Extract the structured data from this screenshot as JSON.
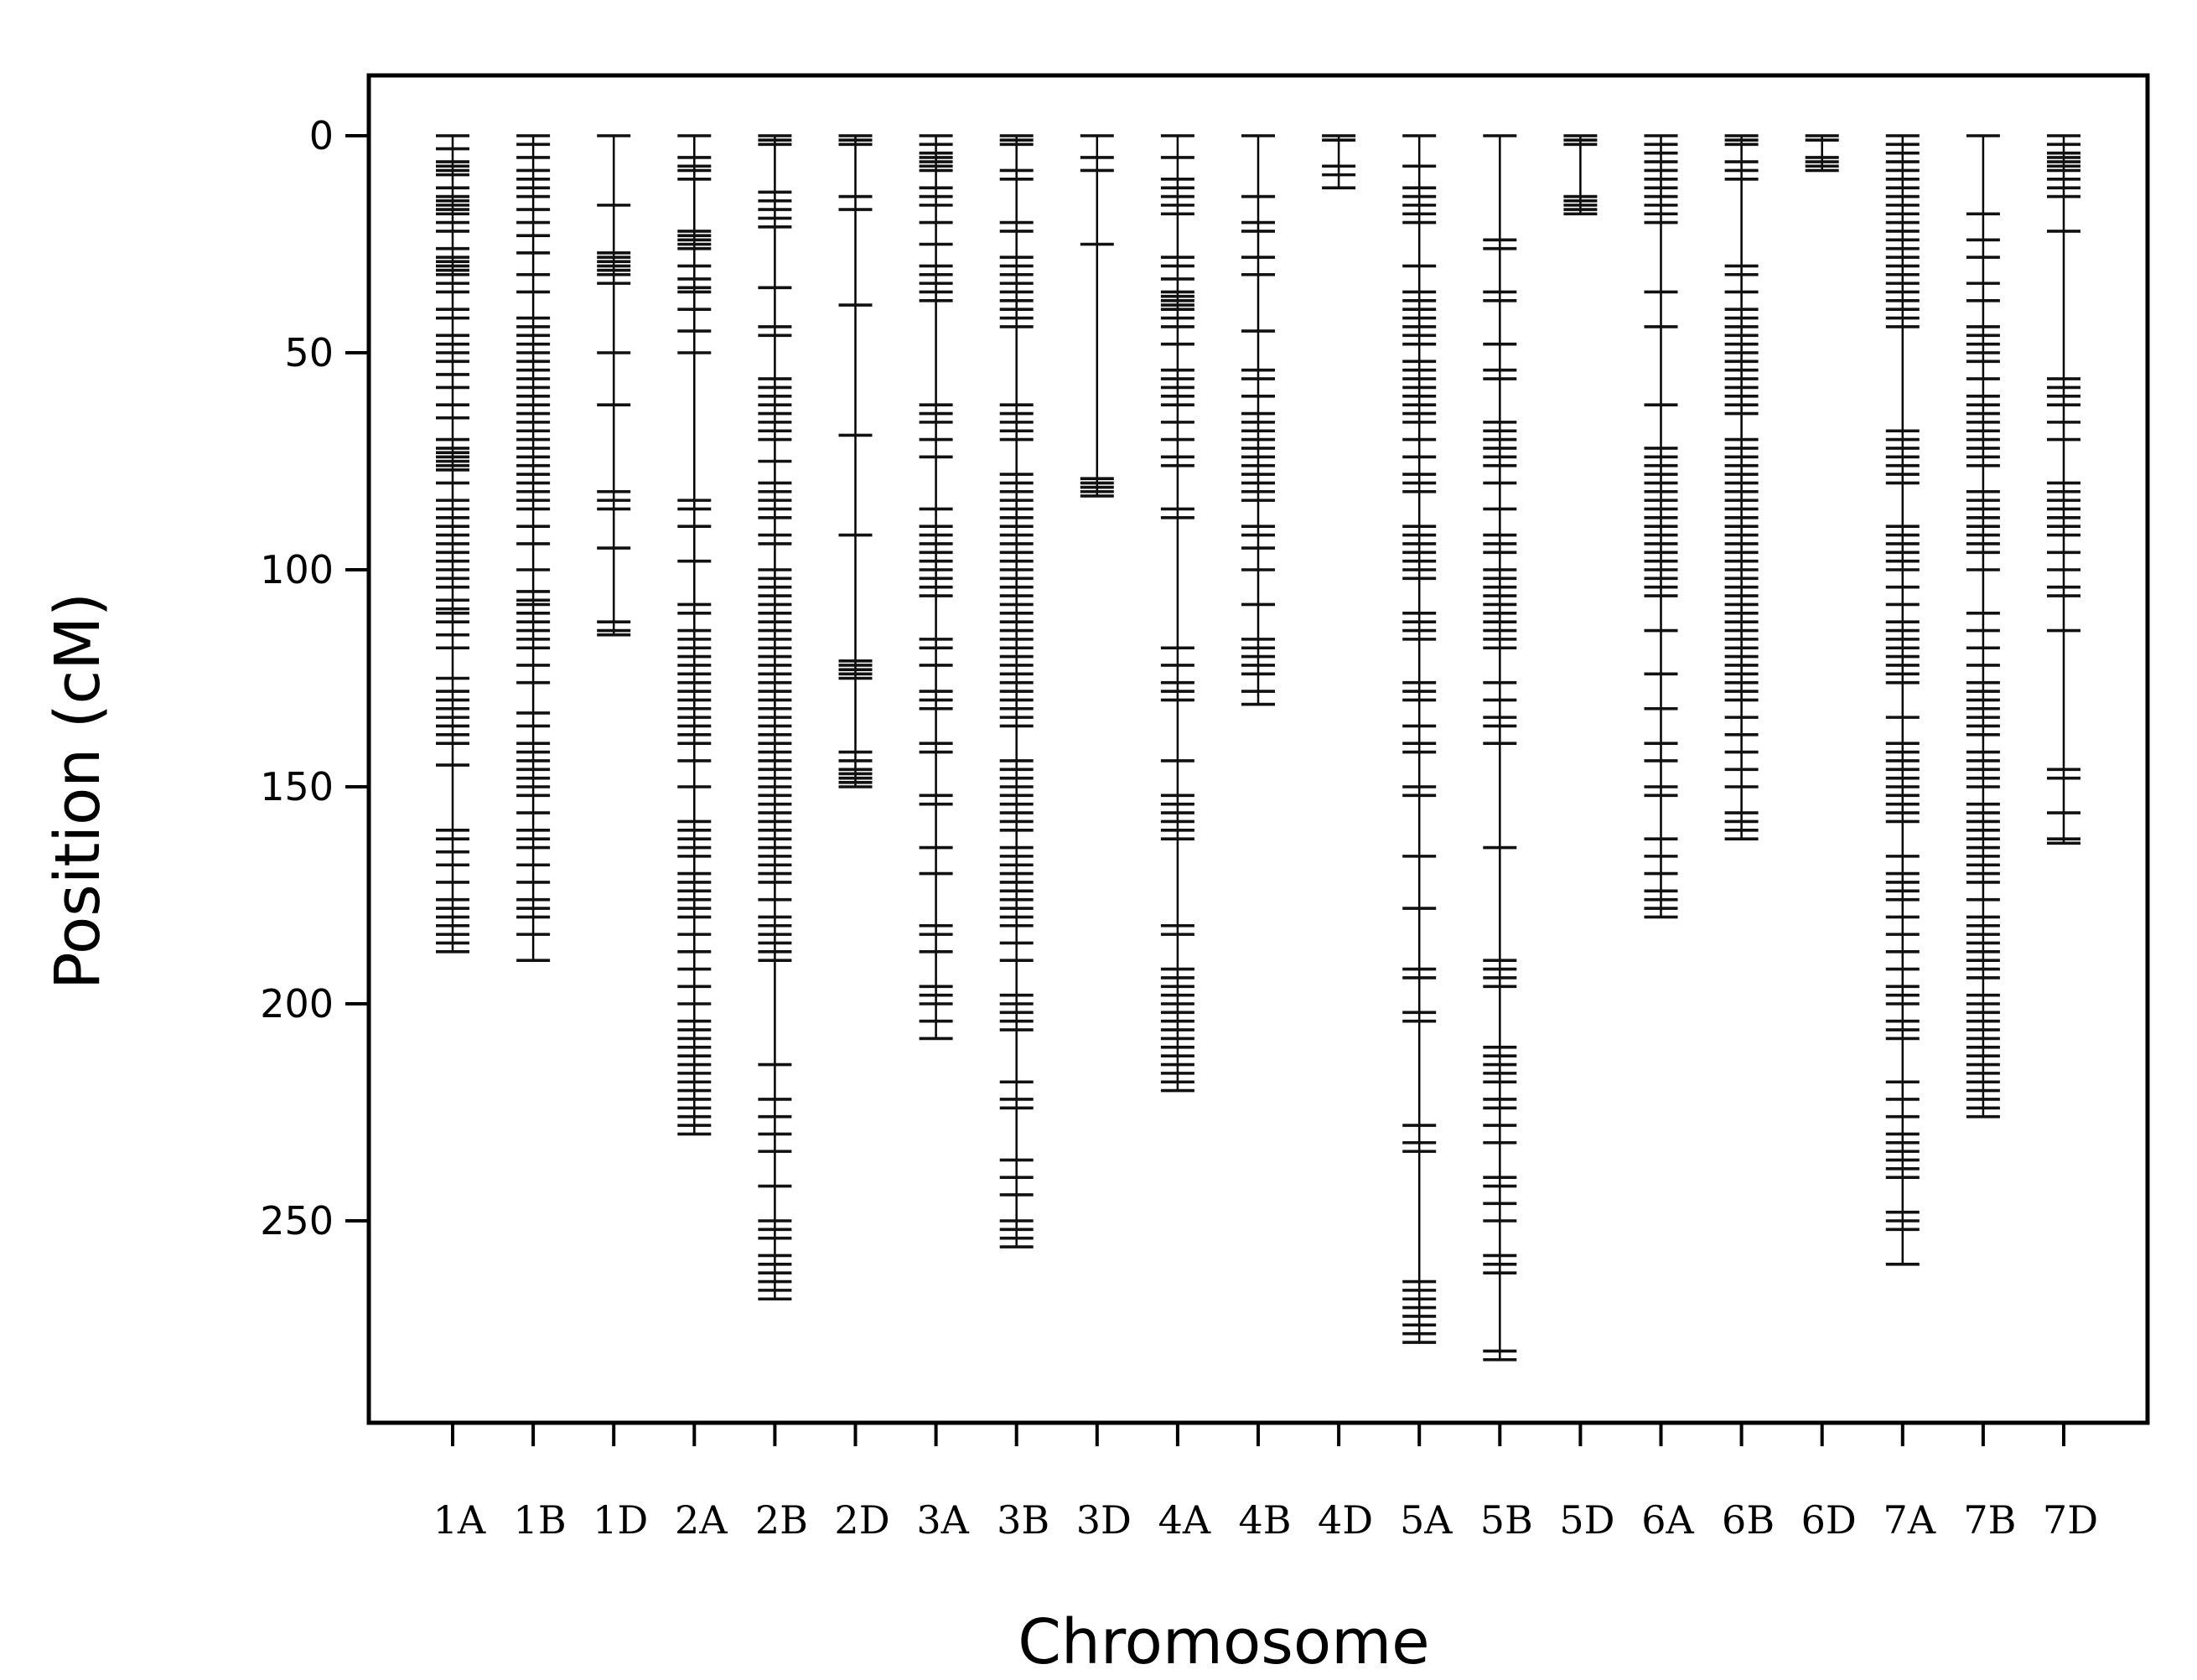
{
  "chart_data": {
    "type": "scatter",
    "xlabel": "Chromosome",
    "ylabel": "Position (cM)",
    "ylim": [
      0,
      295
    ],
    "y_inverted": true,
    "y_ticks": [
      "0",
      "50",
      "100",
      "150",
      "200",
      "250"
    ],
    "y_tick_values": [
      0,
      50,
      100,
      150,
      200,
      250
    ],
    "grid": false,
    "marker_color": "#000000",
    "chromosomes": [
      {
        "name": "1A",
        "length": 188,
        "markers": [
          0,
          3,
          6,
          7,
          8,
          9,
          12,
          14,
          15,
          16,
          17,
          18,
          20,
          22,
          26,
          28,
          29,
          30,
          31,
          32,
          34,
          36,
          40,
          42,
          46,
          48,
          50,
          52,
          55,
          58,
          62,
          65,
          70,
          72,
          73,
          74,
          75,
          76,
          77,
          80,
          84,
          86,
          88,
          90,
          92,
          94,
          96,
          98,
          100,
          102,
          104,
          107,
          109,
          110,
          112,
          115,
          118,
          125,
          128,
          130,
          132,
          134,
          136,
          138,
          140,
          145,
          160,
          162,
          165,
          168,
          172,
          176,
          178,
          180,
          182,
          184,
          186,
          188
        ]
      },
      {
        "name": "1B",
        "length": 190,
        "markers": [
          0,
          2,
          5,
          8,
          10,
          12,
          14,
          17,
          20,
          23,
          27,
          32,
          36,
          42,
          44,
          46,
          48,
          50,
          52,
          54,
          56,
          58,
          60,
          62,
          64,
          66,
          68,
          70,
          72,
          74,
          76,
          78,
          80,
          82,
          84,
          86,
          90,
          94,
          100,
          105,
          107,
          108,
          110,
          112,
          114,
          116,
          118,
          122,
          126,
          133,
          136,
          140,
          142,
          144,
          146,
          148,
          150,
          152,
          156,
          160,
          162,
          164,
          168,
          172,
          176,
          178,
          180,
          184,
          190
        ]
      },
      {
        "name": "1D",
        "length": 115,
        "markers": [
          0,
          16,
          27,
          28,
          29,
          30,
          31,
          32,
          34,
          50,
          62,
          82,
          84,
          86,
          95,
          112,
          114,
          115
        ]
      },
      {
        "name": "2A",
        "length": 230,
        "markers": [
          0,
          5,
          7,
          8,
          10,
          22,
          23,
          24,
          25,
          26,
          30,
          33,
          35,
          36,
          40,
          45,
          50,
          84,
          86,
          90,
          98,
          108,
          110,
          114,
          116,
          118,
          120,
          122,
          124,
          126,
          128,
          130,
          132,
          134,
          136,
          138,
          140,
          144,
          150,
          158,
          160,
          162,
          164,
          166,
          170,
          172,
          174,
          176,
          178,
          180,
          184,
          188,
          192,
          196,
          200,
          204,
          206,
          208,
          210,
          212,
          214,
          216,
          218,
          220,
          222,
          224,
          226,
          228,
          230
        ]
      },
      {
        "name": "2B",
        "length": 268,
        "markers": [
          0,
          1,
          2,
          13,
          15,
          17,
          19,
          21,
          35,
          44,
          46,
          56,
          58,
          60,
          62,
          64,
          66,
          68,
          70,
          75,
          80,
          82,
          84,
          86,
          88,
          92,
          94,
          100,
          102,
          104,
          106,
          108,
          110,
          112,
          114,
          116,
          118,
          120,
          122,
          124,
          126,
          128,
          130,
          132,
          134,
          136,
          138,
          140,
          142,
          144,
          146,
          148,
          150,
          152,
          154,
          156,
          158,
          160,
          162,
          164,
          166,
          168,
          170,
          172,
          176,
          180,
          182,
          184,
          186,
          188,
          190,
          214,
          222,
          226,
          230,
          234,
          242,
          250,
          252,
          254,
          258,
          260,
          262,
          264,
          266,
          268
        ]
      },
      {
        "name": "2D",
        "length": 150,
        "markers": [
          0,
          1,
          2,
          14,
          17,
          39,
          69,
          92,
          121,
          122,
          123,
          124,
          125,
          142,
          144,
          146,
          147,
          148,
          149,
          150
        ]
      },
      {
        "name": "3A",
        "length": 208,
        "markers": [
          0,
          2,
          4,
          5,
          6,
          7,
          8,
          12,
          14,
          16,
          20,
          25,
          30,
          32,
          34,
          36,
          38,
          62,
          64,
          66,
          70,
          74,
          86,
          90,
          92,
          94,
          96,
          98,
          100,
          102,
          104,
          106,
          116,
          118,
          122,
          128,
          130,
          132,
          140,
          142,
          152,
          154,
          164,
          170,
          182,
          184,
          188,
          196,
          198,
          200,
          204,
          208
        ]
      },
      {
        "name": "3B",
        "length": 256,
        "markers": [
          0,
          1,
          2,
          8,
          10,
          20,
          22,
          28,
          30,
          32,
          34,
          36,
          38,
          40,
          42,
          44,
          62,
          64,
          66,
          68,
          70,
          78,
          80,
          82,
          84,
          86,
          88,
          90,
          92,
          94,
          96,
          98,
          100,
          102,
          104,
          106,
          108,
          110,
          112,
          114,
          116,
          118,
          120,
          122,
          124,
          126,
          128,
          130,
          132,
          134,
          136,
          144,
          146,
          148,
          150,
          152,
          154,
          156,
          158,
          160,
          164,
          166,
          168,
          170,
          172,
          174,
          176,
          178,
          180,
          182,
          186,
          190,
          198,
          200,
          202,
          204,
          206,
          218,
          222,
          224,
          236,
          240,
          244,
          250,
          252,
          254,
          256
        ]
      },
      {
        "name": "3D",
        "length": 83,
        "markers": [
          0,
          5,
          8,
          25,
          79,
          80,
          81,
          82,
          83
        ]
      },
      {
        "name": "4A",
        "length": 220,
        "markers": [
          0,
          5,
          10,
          12,
          14,
          16,
          18,
          28,
          30,
          33,
          36,
          37,
          38,
          39,
          40,
          42,
          44,
          48,
          54,
          56,
          58,
          60,
          62,
          66,
          70,
          74,
          76,
          86,
          88,
          118,
          122,
          126,
          128,
          130,
          144,
          152,
          154,
          156,
          158,
          160,
          162,
          182,
          184,
          192,
          194,
          196,
          198,
          200,
          202,
          204,
          206,
          208,
          210,
          212,
          214,
          216,
          218,
          220
        ]
      },
      {
        "name": "4B",
        "length": 131,
        "markers": [
          0,
          14,
          20,
          22,
          28,
          32,
          45,
          54,
          56,
          60,
          64,
          66,
          68,
          70,
          72,
          74,
          76,
          78,
          80,
          82,
          84,
          90,
          92,
          95,
          100,
          108,
          116,
          118,
          120,
          122,
          124,
          128,
          131
        ]
      },
      {
        "name": "4D",
        "length": 12,
        "markers": [
          0,
          1,
          7,
          9,
          12
        ]
      },
      {
        "name": "5A",
        "length": 278,
        "markers": [
          0,
          7,
          12,
          14,
          16,
          18,
          20,
          30,
          36,
          38,
          40,
          42,
          44,
          46,
          48,
          52,
          54,
          56,
          58,
          60,
          62,
          64,
          66,
          70,
          74,
          78,
          80,
          82,
          90,
          92,
          94,
          96,
          98,
          100,
          102,
          110,
          112,
          114,
          116,
          126,
          128,
          130,
          136,
          140,
          142,
          150,
          152,
          166,
          178,
          192,
          194,
          202,
          204,
          228,
          232,
          234,
          264,
          266,
          268,
          270,
          272,
          274,
          276,
          278
        ]
      },
      {
        "name": "5B",
        "length": 282,
        "markers": [
          0,
          24,
          26,
          36,
          38,
          48,
          54,
          56,
          66,
          68,
          70,
          72,
          74,
          76,
          80,
          86,
          92,
          94,
          96,
          100,
          102,
          104,
          106,
          108,
          110,
          112,
          114,
          116,
          118,
          126,
          130,
          134,
          136,
          140,
          164,
          190,
          192,
          194,
          196,
          210,
          212,
          214,
          216,
          218,
          222,
          224,
          228,
          232,
          240,
          242,
          246,
          250,
          258,
          260,
          262,
          280,
          282
        ]
      },
      {
        "name": "5D",
        "length": 18,
        "markers": [
          0,
          1,
          2,
          14,
          15,
          16,
          17,
          18
        ]
      },
      {
        "name": "6A",
        "length": 180,
        "markers": [
          0,
          2,
          4,
          6,
          8,
          10,
          12,
          14,
          16,
          18,
          20,
          36,
          44,
          62,
          72,
          74,
          76,
          78,
          80,
          82,
          84,
          86,
          88,
          90,
          92,
          94,
          96,
          98,
          100,
          102,
          104,
          106,
          114,
          124,
          132,
          140,
          144,
          150,
          152,
          162,
          166,
          170,
          174,
          176,
          178,
          180
        ]
      },
      {
        "name": "6B",
        "length": 162,
        "markers": [
          0,
          1,
          2,
          6,
          8,
          10,
          30,
          32,
          36,
          40,
          42,
          44,
          46,
          48,
          50,
          52,
          54,
          56,
          58,
          60,
          62,
          64,
          70,
          72,
          74,
          76,
          78,
          80,
          82,
          84,
          86,
          88,
          90,
          92,
          94,
          96,
          98,
          100,
          102,
          104,
          106,
          108,
          110,
          112,
          114,
          116,
          118,
          120,
          122,
          124,
          126,
          128,
          130,
          134,
          138,
          142,
          146,
          150,
          156,
          158,
          160,
          162
        ]
      },
      {
        "name": "6D",
        "length": 8,
        "markers": [
          0,
          1,
          5,
          6,
          7,
          8
        ]
      },
      {
        "name": "7A",
        "length": 260,
        "markers": [
          0,
          2,
          4,
          6,
          8,
          10,
          12,
          14,
          16,
          18,
          20,
          22,
          24,
          26,
          28,
          30,
          32,
          34,
          36,
          38,
          40,
          42,
          44,
          68,
          70,
          72,
          74,
          76,
          78,
          80,
          90,
          92,
          94,
          96,
          98,
          100,
          104,
          108,
          112,
          114,
          116,
          118,
          120,
          122,
          124,
          126,
          134,
          140,
          142,
          144,
          146,
          148,
          150,
          152,
          154,
          156,
          158,
          166,
          170,
          172,
          174,
          176,
          180,
          184,
          188,
          192,
          196,
          198,
          200,
          204,
          206,
          208,
          218,
          222,
          226,
          230,
          232,
          234,
          236,
          238,
          240,
          248,
          250,
          252,
          260
        ]
      },
      {
        "name": "7B",
        "length": 226,
        "markers": [
          0,
          18,
          24,
          28,
          34,
          38,
          44,
          46,
          48,
          50,
          52,
          56,
          60,
          62,
          64,
          66,
          68,
          70,
          72,
          74,
          76,
          82,
          84,
          86,
          88,
          90,
          92,
          94,
          96,
          100,
          110,
          114,
          118,
          122,
          126,
          128,
          130,
          132,
          134,
          136,
          138,
          142,
          144,
          146,
          148,
          150,
          154,
          156,
          158,
          160,
          162,
          164,
          166,
          168,
          170,
          172,
          176,
          180,
          182,
          184,
          186,
          188,
          190,
          192,
          194,
          198,
          200,
          202,
          204,
          206,
          208,
          210,
          212,
          214,
          216,
          218,
          220,
          222,
          224,
          226
        ]
      },
      {
        "name": "7D",
        "length": 163,
        "markers": [
          0,
          2,
          4,
          5,
          6,
          7,
          8,
          10,
          12,
          14,
          22,
          56,
          58,
          60,
          62,
          66,
          70,
          80,
          82,
          84,
          86,
          88,
          90,
          92,
          96,
          100,
          104,
          106,
          114,
          146,
          148,
          156,
          162,
          163
        ]
      }
    ]
  }
}
